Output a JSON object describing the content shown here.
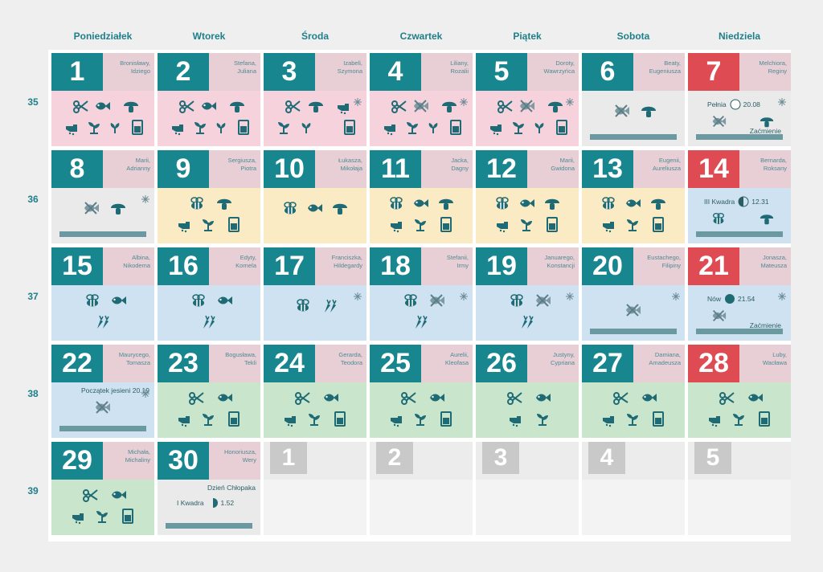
{
  "header": {
    "days": [
      "Poniedziałek",
      "Wtorek",
      "Środa",
      "Czwartek",
      "Piątek",
      "Sobota",
      "Niedziela"
    ],
    "weeks": [
      "35",
      "36",
      "37",
      "38",
      "39"
    ]
  },
  "colors": {
    "accent_teal": "#17868f",
    "sunday_red": "#de4b53",
    "inactive_grey": "#c9c9c9",
    "phase_pink": "#f6d2dc",
    "phase_grey": "#eaeaea",
    "phase_yellow": "#faebc5",
    "phase_blue": "#cfe2f1",
    "phase_green": "#c9e6cc"
  },
  "days": [
    {
      "num": "1",
      "names": "Bronisławy,\nIdziego",
      "bg": "p",
      "icons": [
        "scissors-icon",
        "fish-icon",
        "mushroom-icon",
        "hand-icon",
        "seedling-icon",
        "sprout-icon",
        "jar-icon"
      ]
    },
    {
      "num": "2",
      "names": "Stefana,\nJuliana",
      "bg": "p",
      "icons": [
        "scissors-icon",
        "fish-icon",
        "mushroom-icon",
        "hand-icon",
        "seedling-icon",
        "sprout-icon",
        "jar-icon"
      ]
    },
    {
      "num": "3",
      "names": "Izabeli,\nSzymona",
      "bg": "p",
      "snow": true,
      "icons": [
        "scissors-icon",
        "mushroom-icon",
        "hand-icon",
        "seedling-icon",
        "sprout-icon",
        "jar-icon"
      ]
    },
    {
      "num": "4",
      "names": "Liliany,\nRozalii",
      "bg": "p",
      "snow": true,
      "icons": [
        "scissors-icon",
        "no-fish-icon",
        "mushroom-icon",
        "hand-icon",
        "seedling-icon",
        "sprout-icon",
        "jar-icon"
      ]
    },
    {
      "num": "5",
      "names": "Doroty,\nWawrzyńca",
      "bg": "p",
      "snow": true,
      "icons": [
        "scissors-icon",
        "no-fish-icon",
        "mushroom-icon",
        "hand-icon",
        "seedling-icon",
        "sprout-icon",
        "jar-icon"
      ]
    },
    {
      "num": "6",
      "names": "Beaty,\nEugeniusza",
      "bg": "g",
      "bar": true,
      "icons": [
        "no-fish-icon",
        "mushroom-icon"
      ]
    },
    {
      "num": "7",
      "names": "Melchiora,\nReginy",
      "bg": "g",
      "sunday": true,
      "bar": true,
      "snow": true,
      "phase": {
        "label": "Pełnia",
        "time": "20.08",
        "kind": "full"
      },
      "note": "Zaćmienie",
      "icons": [
        "no-fish-icon",
        "mushroom-icon"
      ]
    },
    {
      "num": "8",
      "names": "Marii,\nAdrianny",
      "bg": "g",
      "bar": true,
      "snow": true,
      "icons": [
        "no-fish-icon",
        "mushroom-icon"
      ]
    },
    {
      "num": "9",
      "names": "Sergiusza,\nPiotra",
      "bg": "y",
      "icons": [
        "bee-icon",
        "mushroom-icon",
        "hand-icon",
        "seedling-icon",
        "jar-icon"
      ]
    },
    {
      "num": "10",
      "names": "Łukasza,\nMikołaja",
      "bg": "y",
      "icons": [
        "bee-icon",
        "fish-icon",
        "mushroom-icon"
      ]
    },
    {
      "num": "11",
      "names": "Jacka,\nDagny",
      "bg": "y",
      "icons": [
        "bee-icon",
        "fish-icon",
        "mushroom-icon",
        "hand-icon",
        "seedling-icon",
        "jar-icon"
      ]
    },
    {
      "num": "12",
      "names": "Marii,\nGwidona",
      "bg": "y",
      "icons": [
        "bee-icon",
        "fish-icon",
        "mushroom-icon",
        "hand-icon",
        "seedling-icon",
        "jar-icon"
      ]
    },
    {
      "num": "13",
      "names": "Eugenii,\nAureliusza",
      "bg": "y",
      "icons": [
        "bee-icon",
        "fish-icon",
        "mushroom-icon",
        "hand-icon",
        "seedling-icon",
        "jar-icon"
      ]
    },
    {
      "num": "14",
      "names": "Bernarda,\nRoksany",
      "bg": "b",
      "sunday": true,
      "bar": true,
      "phase": {
        "label": "III Kwadra",
        "time": "12.31",
        "kind": "third"
      },
      "icons": [
        "bee-icon",
        "mushroom-icon"
      ]
    },
    {
      "num": "15",
      "names": "Albina,\nNikodema",
      "bg": "b",
      "icons": [
        "bee-icon",
        "fish-icon",
        "carrot-icon"
      ]
    },
    {
      "num": "16",
      "names": "Edyty,\nKornela",
      "bg": "b",
      "icons": [
        "bee-icon",
        "fish-icon",
        "carrot-icon"
      ]
    },
    {
      "num": "17",
      "names": "Franciszka,\nHildegardy",
      "bg": "b",
      "snow": true,
      "icons": [
        "bee-icon",
        "carrot-icon"
      ]
    },
    {
      "num": "18",
      "names": "Stefanii,\nIrmy",
      "bg": "b",
      "snow": true,
      "icons": [
        "bee-icon",
        "no-fish-icon",
        "carrot-icon"
      ]
    },
    {
      "num": "19",
      "names": "Januarego,\nKonstancji",
      "bg": "b",
      "snow": true,
      "icons": [
        "bee-icon",
        "no-fish-icon",
        "carrot-icon"
      ]
    },
    {
      "num": "20",
      "names": "Eustachego,\nFilipiny",
      "bg": "b",
      "snow": true,
      "bar": true,
      "icons": [
        "no-fish-icon"
      ]
    },
    {
      "num": "21",
      "names": "Jonasza,\nMateusza",
      "bg": "b",
      "sunday": true,
      "bar": true,
      "snow": true,
      "phase": {
        "label": "Nów",
        "time": "21.54",
        "kind": "new"
      },
      "note": "Zaćmienie",
      "icons": [
        "no-fish-icon"
      ]
    },
    {
      "num": "22",
      "names": "Maurycego,\nTomasza",
      "bg": "b",
      "bar": true,
      "snow": true,
      "top_note": "Początek jesieni 20.19",
      "icons": [
        "no-fish-icon"
      ]
    },
    {
      "num": "23",
      "names": "Bogusława,\nTekli",
      "bg": "gr",
      "icons": [
        "scissors-icon",
        "fish-icon",
        "hand-icon",
        "seedling-icon",
        "jar-icon"
      ]
    },
    {
      "num": "24",
      "names": "Gerarda,\nTeodora",
      "bg": "gr",
      "icons": [
        "scissors-icon",
        "fish-icon",
        "hand-icon",
        "seedling-icon",
        "jar-icon"
      ]
    },
    {
      "num": "25",
      "names": "Aurelii,\nKleofasa",
      "bg": "gr",
      "icons": [
        "scissors-icon",
        "fish-icon",
        "hand-icon",
        "seedling-icon",
        "jar-icon"
      ]
    },
    {
      "num": "26",
      "names": "Justyny,\nCypriana",
      "bg": "gr",
      "icons": [
        "scissors-icon",
        "fish-icon",
        "hand-icon",
        "seedling-icon"
      ]
    },
    {
      "num": "27",
      "names": "Damiana,\nAmadeusza",
      "bg": "gr",
      "icons": [
        "scissors-icon",
        "fish-icon",
        "hand-icon",
        "seedling-icon",
        "jar-icon"
      ]
    },
    {
      "num": "28",
      "names": "Luby,\nWacława",
      "bg": "gr",
      "sunday": true,
      "icons": [
        "scissors-icon",
        "fish-icon",
        "hand-icon",
        "seedling-icon",
        "jar-icon"
      ]
    },
    {
      "num": "29",
      "names": "Michała,\nMichaliny",
      "bg": "gr",
      "icons": [
        "scissors-icon",
        "fish-icon",
        "hand-icon",
        "seedling-icon",
        "jar-icon"
      ]
    },
    {
      "num": "30",
      "names": "Honoriusza,\nWery",
      "bg": "g",
      "bar": true,
      "top_note": "Dzień Chłopaka",
      "phase": {
        "label": "I Kwadra",
        "time": "1.52",
        "kind": "first"
      },
      "icons": []
    },
    {
      "num": "1",
      "empty": true
    },
    {
      "num": "2",
      "empty": true
    },
    {
      "num": "3",
      "empty": true
    },
    {
      "num": "4",
      "empty": true
    },
    {
      "num": "5",
      "empty": true
    }
  ]
}
